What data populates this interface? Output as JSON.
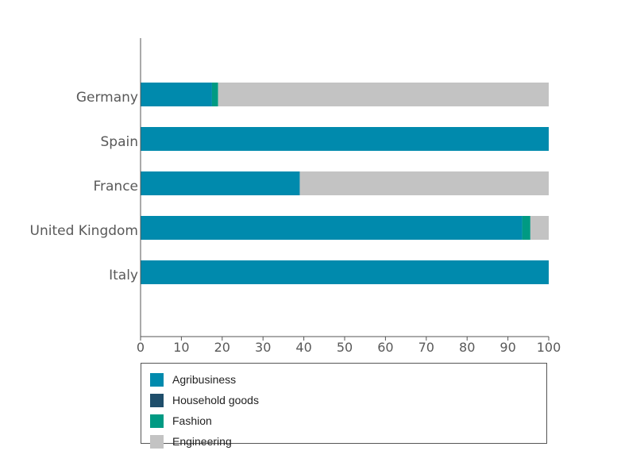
{
  "chart_data": {
    "type": "bar",
    "orientation": "horizontal",
    "stacked": true,
    "categories": [
      "Germany",
      "Spain",
      "France",
      "United Kingdom",
      "Italy"
    ],
    "series": [
      {
        "name": "Agribusiness",
        "color": "#008aad",
        "values": [
          17.5,
          100,
          39,
          93.5,
          100
        ]
      },
      {
        "name": "Household goods",
        "color": "#1f4e6b",
        "values": [
          0,
          0,
          0,
          0,
          0
        ]
      },
      {
        "name": "Fashion",
        "color": "#009a83",
        "values": [
          1.5,
          0,
          0,
          2,
          0
        ]
      },
      {
        "name": "Engineering",
        "color": "#c3c3c3",
        "values": [
          81,
          0,
          61,
          4.5,
          0
        ]
      }
    ],
    "xlim": [
      0,
      100
    ],
    "xticks": [
      "0",
      "10",
      "20",
      "30",
      "40",
      "50",
      "60",
      "70",
      "80",
      "90",
      "100"
    ],
    "xlabel": "",
    "ylabel": "",
    "title": "",
    "grid": false,
    "legend_position": "bottom"
  }
}
